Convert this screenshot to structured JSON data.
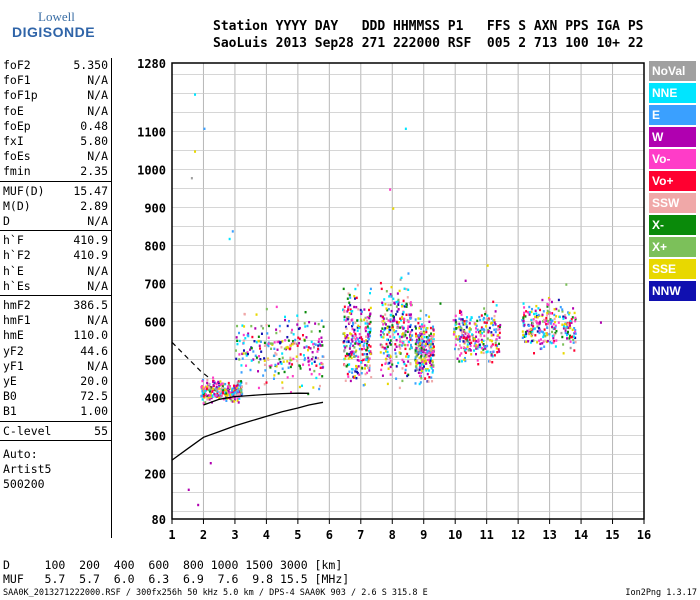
{
  "logo": {
    "line1": "Lowell",
    "line2": "DIGISONDE"
  },
  "header": {
    "line1": "Station YYYY DAY   DDD HHMMSS P1   FFS S AXN PPS IGA PS",
    "line2": "SaoLuis 2013 Sep28 271 222000 RSF  005 2 713 100 10+ 22"
  },
  "params_group1": [
    {
      "key": "foF2",
      "value": "5.350"
    },
    {
      "key": "foF1",
      "value": "N/A"
    },
    {
      "key": "foF1p",
      "value": "N/A"
    },
    {
      "key": "foE",
      "value": "N/A"
    },
    {
      "key": "foEp",
      "value": "0.48"
    },
    {
      "key": "fxI",
      "value": "5.80"
    },
    {
      "key": "foEs",
      "value": "N/A"
    },
    {
      "key": "fmin",
      "value": "2.35"
    }
  ],
  "params_group2": [
    {
      "key": "MUF(D)",
      "value": "15.47"
    },
    {
      "key": "M(D)",
      "value": "2.89"
    },
    {
      "key": "D",
      "value": "N/A"
    }
  ],
  "params_group3": [
    {
      "key": "h`F",
      "value": "410.9"
    },
    {
      "key": "h`F2",
      "value": "410.9"
    },
    {
      "key": "h`E",
      "value": "N/A"
    },
    {
      "key": "h`Es",
      "value": "N/A"
    }
  ],
  "params_group4": [
    {
      "key": "hmF2",
      "value": "386.5"
    },
    {
      "key": "hmF1",
      "value": "N/A"
    },
    {
      "key": "hmE",
      "value": "110.0"
    },
    {
      "key": "yF2",
      "value": "44.6"
    },
    {
      "key": "yF1",
      "value": "N/A"
    },
    {
      "key": "yE",
      "value": "20.0"
    },
    {
      "key": "B0",
      "value": "72.5"
    },
    {
      "key": "B1",
      "value": "1.00"
    }
  ],
  "params_group5": [
    {
      "key": "C-level",
      "value": "55"
    }
  ],
  "autoscale": {
    "line1": "Auto:",
    "line2": "Artist5",
    "line3": "500200"
  },
  "legend": [
    {
      "label": "NoVal",
      "color": "#a0a0a0"
    },
    {
      "label": "NNE",
      "color": "#00e5ff"
    },
    {
      "label": "E",
      "color": "#3aa0ff"
    },
    {
      "label": "W",
      "color": "#b000b0"
    },
    {
      "label": "Vo-",
      "color": "#ff3cc8"
    },
    {
      "label": "Vo+",
      "color": "#ff0030"
    },
    {
      "label": "SSW",
      "color": "#f0a8a8"
    },
    {
      "label": "X-",
      "color": "#0a8a0a"
    },
    {
      "label": "X+",
      "color": "#7cc05a"
    },
    {
      "label": "SSE",
      "color": "#e8d800"
    },
    {
      "label": "NNW",
      "color": "#1010b0"
    }
  ],
  "muf_table": {
    "line1": "D     100  200  400  600  800 1000 1500 3000 [km]",
    "line2": "MUF   5.7  5.7  6.0  6.3  6.9  7.6  9.8 15.5 [MHz]"
  },
  "footer": {
    "left": "SAA0K_2013271222000.RSF / 300fx256h 50 kHz 5.0 km / DPS-4 SAA0K 903 / 2.6 S 315.8 E",
    "right": "Ion2Png 1.3.17"
  },
  "chart_data": {
    "type": "scatter",
    "xlim": [
      1,
      16
    ],
    "ylim": [
      80,
      1280
    ],
    "x_ticks": [
      1,
      2,
      3,
      4,
      5,
      6,
      7,
      8,
      9,
      10,
      11,
      12,
      13,
      14,
      15,
      16
    ],
    "y_ticks": [
      80,
      200,
      300,
      400,
      500,
      600,
      700,
      800,
      900,
      1000,
      1100,
      1280
    ],
    "grid": true,
    "echo_clusters": [
      {
        "x_range": [
          1.9,
          3.2
        ],
        "y_range": [
          380,
          460
        ]
      },
      {
        "x_range": [
          3.0,
          5.8
        ],
        "y_range": [
          390,
          660
        ]
      },
      {
        "x_range": [
          6.4,
          7.3
        ],
        "y_range": [
          390,
          720
        ]
      },
      {
        "x_range": [
          7.6,
          8.6
        ],
        "y_range": [
          400,
          760
        ]
      },
      {
        "x_range": [
          8.7,
          9.3
        ],
        "y_range": [
          410,
          640
        ]
      },
      {
        "x_range": [
          9.9,
          11.4
        ],
        "y_range": [
          470,
          660
        ]
      },
      {
        "x_range": [
          12.1,
          13.8
        ],
        "y_range": [
          500,
          680
        ]
      }
    ],
    "profile_curves": [
      {
        "name": "",
        "x": [
          1.0,
          1.5,
          2.0,
          2.5,
          3.0,
          3.5,
          4.0,
          4.5,
          5.0,
          5.35,
          5.8
        ],
        "y": [
          235,
          265,
          295,
          310,
          325,
          338,
          350,
          362,
          372,
          380,
          387
        ]
      },
      {
        "name": "",
        "x": [
          2.0,
          2.5,
          3.0,
          3.5,
          4.0,
          4.5,
          5.0,
          5.35
        ],
        "y": [
          380,
          395,
          402,
          405,
          408,
          410,
          411,
          410.9
        ]
      }
    ],
    "dashed_curve": {
      "x": [
        1.0,
        1.3,
        1.6,
        1.9,
        2.2
      ],
      "y": [
        545,
        520,
        495,
        470,
        450
      ]
    }
  }
}
